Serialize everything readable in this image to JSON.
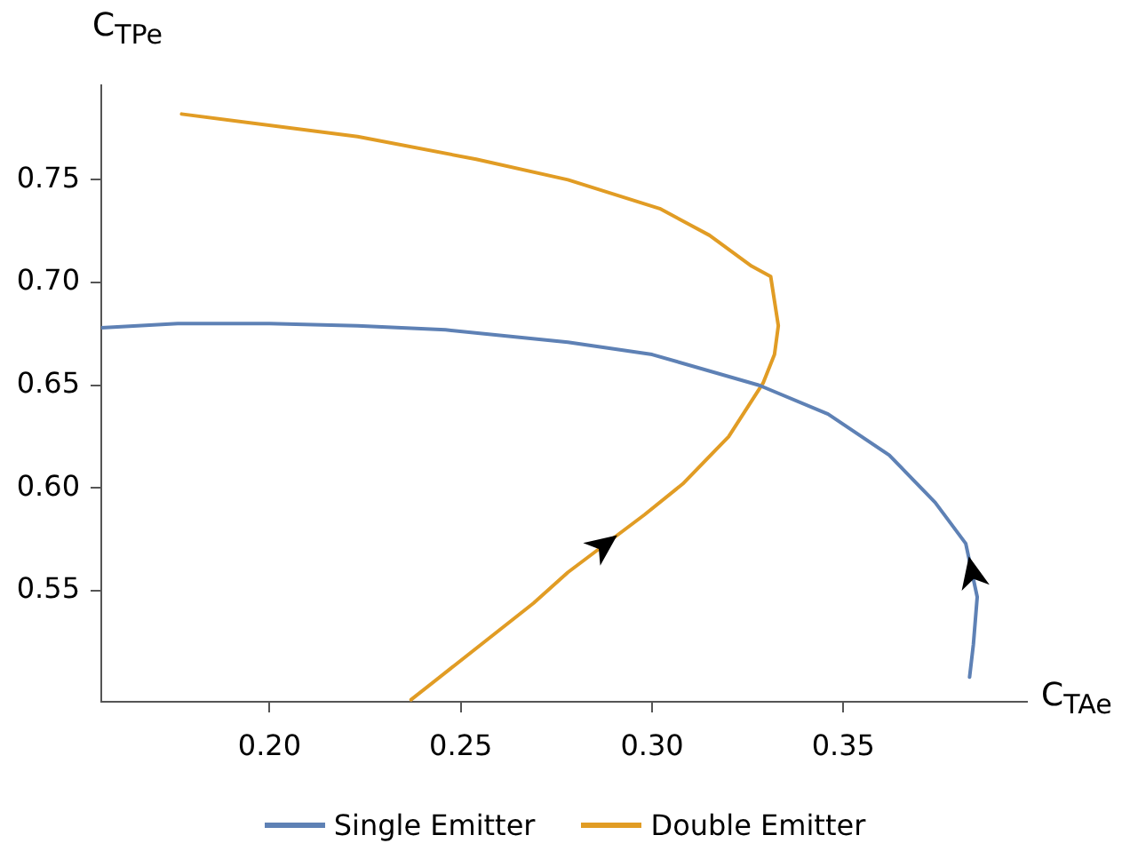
{
  "chart_data": {
    "type": "line",
    "xlabel": "C$_{TAe}$",
    "ylabel": "C$_{TPe}$",
    "xlim": [
      0.156,
      0.398
    ],
    "ylim": [
      0.496,
      0.796
    ],
    "xticks": [
      {
        "value": 0.2,
        "label": "0.20"
      },
      0.25,
      {
        "value": 0.3,
        "label": "0.30"
      },
      0.35
    ],
    "yticks": [
      0.55,
      {
        "value": 0.6,
        "label": "0.60"
      },
      0.65,
      {
        "value": 0.7,
        "label": "0.70"
      },
      0.75
    ],
    "grid": false,
    "legend": "bottom",
    "marker": "none",
    "line_style": "solid",
    "series": [
      {
        "name": "Single Emitter",
        "color": "#5e81b5",
        "x": [
          0.383,
          0.384,
          0.385,
          0.382,
          0.374,
          0.362,
          0.346,
          0.328,
          0.3,
          0.278,
          0.246,
          0.223,
          0.2,
          0.176,
          0.156
        ],
        "values": [
          0.508,
          0.524,
          0.547,
          0.573,
          0.593,
          0.616,
          0.636,
          0.65,
          0.665,
          0.671,
          0.677,
          0.679,
          0.68,
          0.68,
          0.678
        ]
      },
      {
        "name": "Double Emitter",
        "color": "#e19c24",
        "x": [
          0.237,
          0.269,
          0.278,
          0.298,
          0.308,
          0.32,
          0.329,
          0.332,
          0.333,
          0.332,
          0.331,
          0.326,
          0.315,
          0.302,
          0.278,
          0.254,
          0.223,
          0.177
        ],
        "values": [
          0.497,
          0.544,
          0.559,
          0.587,
          0.602,
          0.625,
          0.651,
          0.665,
          0.679,
          0.691,
          0.703,
          0.708,
          0.723,
          0.736,
          0.75,
          0.76,
          0.771,
          0.782
        ]
      }
    ]
  }
}
